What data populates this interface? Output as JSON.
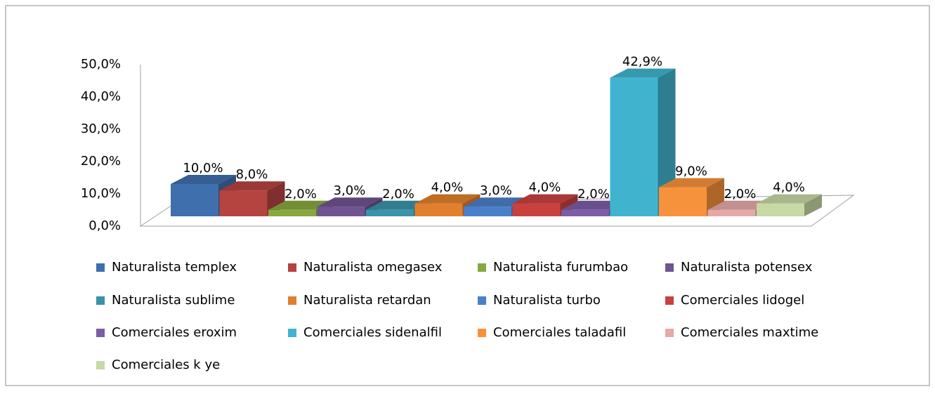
{
  "chart_data": {
    "type": "bar3d",
    "series": [
      {
        "name": "Naturalista templex",
        "color": "#3f6fad",
        "values": [
          10.0
        ],
        "value_labels": [
          "10,0%"
        ]
      },
      {
        "name": "Naturalista omegasex",
        "color": "#b54340",
        "values": [
          8.0
        ],
        "value_labels": [
          "8,0%"
        ]
      },
      {
        "name": "Naturalista furumbao",
        "color": "#86a83e",
        "values": [
          2.0
        ],
        "value_labels": [
          "2,0%"
        ]
      },
      {
        "name": "Naturalista potensex",
        "color": "#6f5491",
        "values": [
          3.0
        ],
        "value_labels": [
          "3,0%"
        ]
      },
      {
        "name": "Naturalista sublime",
        "color": "#3a93a8",
        "values": [
          2.0
        ],
        "value_labels": [
          "2,0%"
        ]
      },
      {
        "name": "Naturalista retardan",
        "color": "#e17f2c",
        "values": [
          4.0
        ],
        "value_labels": [
          "4,0%"
        ]
      },
      {
        "name": "Naturalista turbo",
        "color": "#4b7fca",
        "values": [
          3.0
        ],
        "value_labels": [
          "3,0%"
        ]
      },
      {
        "name": "Comerciales lidogel",
        "color": "#c9413f",
        "values": [
          4.0
        ],
        "value_labels": [
          "4,0%"
        ]
      },
      {
        "name": "Comerciales eroxim",
        "color": "#7c5ea6",
        "values": [
          2.0
        ],
        "value_labels": [
          "2,0%"
        ]
      },
      {
        "name": "Comerciales sidenalfil",
        "color": "#40b4cf",
        "values": [
          42.9
        ],
        "value_labels": [
          "42,9%"
        ]
      },
      {
        "name": "Comerciales taladafil",
        "color": "#f7923c",
        "values": [
          9.0
        ],
        "value_labels": [
          "9,0%"
        ]
      },
      {
        "name": "Comerciales maxtime",
        "color": "#e4a9a8",
        "values": [
          2.0
        ],
        "value_labels": [
          "2,0%"
        ]
      },
      {
        "name": "Comerciales k ye",
        "color": "#c7d9a5",
        "values": [
          4.0
        ],
        "value_labels": [
          "4,0%"
        ]
      }
    ],
    "ylim": [
      0,
      50
    ],
    "yticks": [
      {
        "value": 0,
        "label": "0,0%"
      },
      {
        "value": 10,
        "label": "10,0%"
      },
      {
        "value": 20,
        "label": "20,0%"
      },
      {
        "value": 30,
        "label": "30,0%"
      },
      {
        "value": 40,
        "label": "40,0%"
      },
      {
        "value": 50,
        "label": "50,0%"
      }
    ],
    "legend": "bottom"
  }
}
